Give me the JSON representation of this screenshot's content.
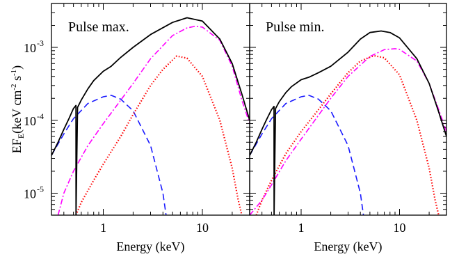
{
  "chart_data": [
    {
      "type": "line",
      "panel_label": "Pulse max.",
      "xlabel": "Energy (keV)",
      "ylabel": "EF",
      "ylabel_sub": "E",
      "ylabel_units": "(keV cm",
      "ylabel_exp1": "-2",
      "ylabel_mid": " s",
      "ylabel_exp2": "-1",
      "ylabel_close": ")",
      "xscale": "log",
      "yscale": "log",
      "xlim": [
        0.3,
        30
      ],
      "ylim": [
        5e-06,
        0.004
      ],
      "xticks": [
        {
          "value": 1,
          "label": "1"
        },
        {
          "value": 10,
          "label": "10"
        }
      ],
      "yticks": [
        {
          "value": 1e-05,
          "mant": "10",
          "exp": "-5"
        },
        {
          "value": 0.0001,
          "mant": "10",
          "exp": "-4"
        },
        {
          "value": 0.001,
          "mant": "10",
          "exp": "-3"
        }
      ],
      "series": [
        {
          "style": "dashed",
          "color": "#1a1aff",
          "x": [
            0.3,
            0.4,
            0.5,
            0.7,
            1.0,
            1.2,
            1.5,
            2.0,
            3.0,
            4.0,
            4.3
          ],
          "y": [
            3.3e-05,
            6.5e-05,
            0.000105,
            0.00017,
            0.00021,
            0.00022,
            0.000195,
            0.000135,
            4.5e-05,
            1e-05,
            5e-06
          ]
        },
        {
          "style": "dotted",
          "color": "#ff0000",
          "x": [
            0.53,
            0.6,
            0.8,
            1.0,
            1.5,
            2.0,
            3.0,
            4.0,
            5.5,
            7.0,
            10.0,
            15.0,
            20.0,
            23.0,
            25.0
          ],
          "y": [
            5e-06,
            7.5e-06,
            1.5e-05,
            2.5e-05,
            6e-05,
            0.00012,
            0.0003,
            0.0005,
            0.00076,
            0.00071,
            0.0004,
            0.0001,
            2.2e-05,
            8e-06,
            5e-06
          ]
        },
        {
          "style": "dashdot",
          "color": "#ff00ff",
          "x": [
            0.35,
            0.4,
            0.5,
            0.7,
            1.0,
            2.0,
            3.0,
            5.0,
            7.0,
            8.5,
            10.0,
            15.0,
            20.0,
            25.0,
            30.0
          ],
          "y": [
            5e-06,
            1e-05,
            2e-05,
            4.5e-05,
            9e-05,
            0.00032,
            0.0007,
            0.00145,
            0.00185,
            0.00195,
            0.0019,
            0.00125,
            0.00055,
            0.00019,
            9e-05
          ]
        },
        {
          "style": "solid",
          "color": "#000000",
          "x": [
            0.3,
            0.35,
            0.4,
            0.45,
            0.5,
            0.53,
            0.531,
            0.55,
            0.6,
            0.7,
            0.8,
            1.0,
            1.2,
            1.5,
            2.0,
            3.0,
            5.0,
            7.0,
            10.0,
            15.0,
            20.0,
            25.0,
            30.0
          ],
          "y": [
            3.3e-05,
            5e-05,
            7.5e-05,
            0.000105,
            0.000145,
            0.00016,
            5e-06,
            0.00015,
            0.00019,
            0.00027,
            0.00035,
            0.00047,
            0.00055,
            0.00073,
            0.001,
            0.0015,
            0.0022,
            0.00255,
            0.0023,
            0.0013,
            0.0006,
            0.00023,
            0.0001
          ]
        }
      ]
    },
    {
      "type": "line",
      "panel_label": "Pulse min.",
      "xlabel": "Energy (keV)",
      "xscale": "log",
      "yscale": "log",
      "xlim": [
        0.3,
        30
      ],
      "ylim": [
        5e-06,
        0.004
      ],
      "xticks": [
        {
          "value": 1,
          "label": "1"
        },
        {
          "value": 10,
          "label": "10"
        }
      ],
      "series": [
        {
          "style": "dashed",
          "color": "#1a1aff",
          "x": [
            0.3,
            0.4,
            0.5,
            0.7,
            1.0,
            1.2,
            1.5,
            2.0,
            3.0,
            4.0,
            4.3
          ],
          "y": [
            3.3e-05,
            6.5e-05,
            0.000105,
            0.00017,
            0.00021,
            0.00022,
            0.000195,
            0.000135,
            4.5e-05,
            1e-05,
            5e-06
          ]
        },
        {
          "style": "dotted",
          "color": "#ff0000",
          "x": [
            0.35,
            0.4,
            0.5,
            0.7,
            1.0,
            1.5,
            2.0,
            3.0,
            4.0,
            5.5,
            7.0,
            10.0,
            15.0,
            20.0,
            23.0,
            25.0
          ],
          "y": [
            5e-06,
            8e-06,
            1.5e-05,
            3.5e-05,
            7e-05,
            0.00014,
            0.00023,
            0.00045,
            0.00065,
            0.00077,
            0.00072,
            0.00042,
            0.0001,
            2.2e-05,
            8e-06,
            5e-06
          ]
        },
        {
          "style": "dashdot",
          "color": "#ff00ff",
          "x": [
            0.3,
            0.4,
            0.5,
            0.7,
            1.0,
            2.0,
            3.0,
            5.0,
            7.0,
            9.0,
            10.0,
            15.0,
            20.0,
            25.0,
            30.0
          ],
          "y": [
            5e-06,
            8e-06,
            1.3e-05,
            2.8e-05,
            5.5e-05,
            0.0002,
            0.0004,
            0.00075,
            0.00093,
            0.00096,
            0.00094,
            0.00065,
            0.00032,
            0.00014,
            7e-05
          ]
        },
        {
          "style": "solid",
          "color": "#000000",
          "x": [
            0.3,
            0.35,
            0.4,
            0.45,
            0.5,
            0.53,
            0.531,
            0.55,
            0.6,
            0.7,
            0.8,
            1.0,
            1.2,
            1.5,
            2.0,
            3.0,
            4.0,
            5.0,
            6.5,
            8.0,
            10.0,
            15.0,
            20.0,
            25.0,
            30.0
          ],
          "y": [
            3.3e-05,
            5e-05,
            7.5e-05,
            0.000105,
            0.00014,
            0.000155,
            5e-06,
            0.000145,
            0.00018,
            0.00024,
            0.00029,
            0.00036,
            0.00039,
            0.00045,
            0.00055,
            0.00086,
            0.0013,
            0.0016,
            0.00168,
            0.0016,
            0.00135,
            0.0007,
            0.00032,
            0.00013,
            6e-05
          ]
        }
      ]
    }
  ]
}
